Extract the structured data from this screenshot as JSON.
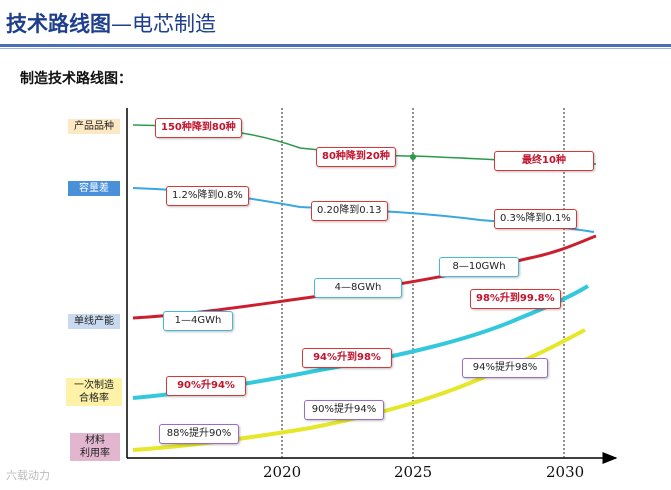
{
  "header": {
    "title_main": "技术路线图",
    "title_sub": "—电芯制造"
  },
  "subtitle": "制造技术路线图：",
  "categories": [
    "产品品种",
    "容量差",
    "单线产能",
    "一次制造\n合格率",
    "材料\n利用率"
  ],
  "years": [
    "2020",
    "2025",
    "2030"
  ],
  "labels": {
    "variety": [
      "150种降到80种",
      "80种降到20种",
      "最终10种"
    ],
    "capacity_diff": [
      "1.2%降到0.8%",
      "0.20降到0.13",
      "0.3%降到0.1%"
    ],
    "line_output": [
      "1—4GWh",
      "4—8GWh",
      "8—10GWh"
    ],
    "first_pass_yield": [
      "90%升94%",
      "94%升到98%",
      "98%升到99.8%"
    ],
    "material_utilization": [
      "88%提升90%",
      "90%提升94%",
      "94%提升98%"
    ]
  },
  "watermark": "六载动力",
  "colors": {
    "title": "#1f3e8c",
    "variety_line": "#2a9a4a",
    "capacity_line": "#3aa8e0",
    "output_line": "#cc1f2e",
    "yield_line": "#33c8dc",
    "material_line": "#e6e62a",
    "cat_variety": "#fde8c4",
    "cat_capacity": "#4a90d9",
    "cat_output": "#c9d9ef",
    "cat_yield": "#fdf2a8",
    "cat_material": "#e2b6cf"
  }
}
